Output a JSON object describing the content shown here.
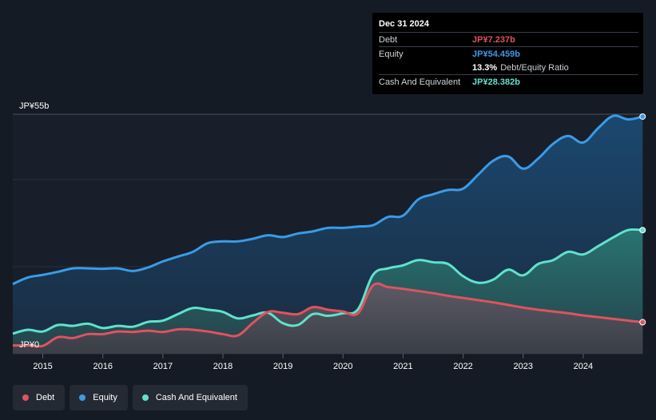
{
  "colors": {
    "debt": "#e05260",
    "equity": "#3b9be6",
    "cash": "#5fe2cc",
    "grid": "#2c323b"
  },
  "tooltip": {
    "date": "Dec 31 2024",
    "debt_label": "Debt",
    "debt_value": "JP¥7.237b",
    "equity_label": "Equity",
    "equity_value": "JP¥54.459b",
    "ratio_value": "13.3%",
    "ratio_text": "Debt/Equity Ratio",
    "cash_label": "Cash And Equivalent",
    "cash_value": "JP¥28.382b"
  },
  "legend": {
    "debt": "Debt",
    "equity": "Equity",
    "cash": "Cash And Equivalent"
  },
  "chart_data": {
    "type": "area",
    "title": "",
    "unit": "JP¥ billions",
    "y_top_label": "JP¥55b",
    "y_bottom_label": "JP¥0",
    "ylim": [
      0,
      55
    ],
    "xlim": [
      2014.5,
      2025.0
    ],
    "x_tick_labels": [
      "2015",
      "2016",
      "2017",
      "2018",
      "2019",
      "2020",
      "2021",
      "2022",
      "2023",
      "2024"
    ],
    "x_ticks": [
      2015,
      2016,
      2017,
      2018,
      2019,
      2020,
      2021,
      2022,
      2023,
      2024
    ],
    "gridlines": [
      0,
      20,
      40,
      55
    ],
    "series": [
      {
        "name": "Equity",
        "key": "equity",
        "points": [
          [
            2014.5,
            16.0
          ],
          [
            2014.75,
            17.5
          ],
          [
            2015.0,
            18.1
          ],
          [
            2015.25,
            18.8
          ],
          [
            2015.5,
            19.6
          ],
          [
            2015.75,
            19.6
          ],
          [
            2016.0,
            19.5
          ],
          [
            2016.25,
            19.6
          ],
          [
            2016.5,
            19.0
          ],
          [
            2016.75,
            19.8
          ],
          [
            2017.0,
            21.2
          ],
          [
            2017.25,
            22.3
          ],
          [
            2017.5,
            23.4
          ],
          [
            2017.75,
            25.4
          ],
          [
            2018.0,
            25.8
          ],
          [
            2018.25,
            25.8
          ],
          [
            2018.5,
            26.4
          ],
          [
            2018.75,
            27.2
          ],
          [
            2019.0,
            26.8
          ],
          [
            2019.25,
            27.6
          ],
          [
            2019.5,
            28.1
          ],
          [
            2019.75,
            28.9
          ],
          [
            2020.0,
            28.9
          ],
          [
            2020.25,
            29.2
          ],
          [
            2020.5,
            29.5
          ],
          [
            2020.75,
            31.4
          ],
          [
            2021.0,
            31.7
          ],
          [
            2021.25,
            35.4
          ],
          [
            2021.5,
            36.6
          ],
          [
            2021.75,
            37.6
          ],
          [
            2022.0,
            37.9
          ],
          [
            2022.25,
            41.1
          ],
          [
            2022.5,
            44.3
          ],
          [
            2022.75,
            45.3
          ],
          [
            2023.0,
            42.5
          ],
          [
            2023.25,
            44.8
          ],
          [
            2023.5,
            48.2
          ],
          [
            2023.75,
            50.0
          ],
          [
            2024.0,
            48.5
          ],
          [
            2024.25,
            51.8
          ],
          [
            2024.5,
            54.6
          ],
          [
            2024.75,
            53.8
          ],
          [
            2024.99,
            54.459
          ]
        ]
      },
      {
        "name": "Cash And Equivalent",
        "key": "cash",
        "points": [
          [
            2014.5,
            4.6
          ],
          [
            2014.75,
            5.5
          ],
          [
            2015.0,
            5.1
          ],
          [
            2015.25,
            6.6
          ],
          [
            2015.5,
            6.4
          ],
          [
            2015.75,
            6.9
          ],
          [
            2016.0,
            5.9
          ],
          [
            2016.25,
            6.4
          ],
          [
            2016.5,
            6.2
          ],
          [
            2016.75,
            7.3
          ],
          [
            2017.0,
            7.6
          ],
          [
            2017.25,
            9.1
          ],
          [
            2017.5,
            10.5
          ],
          [
            2017.75,
            10.1
          ],
          [
            2018.0,
            9.6
          ],
          [
            2018.25,
            8.1
          ],
          [
            2018.5,
            8.8
          ],
          [
            2018.75,
            9.4
          ],
          [
            2019.0,
            7.0
          ],
          [
            2019.25,
            6.6
          ],
          [
            2019.5,
            9.1
          ],
          [
            2019.75,
            8.7
          ],
          [
            2020.0,
            9.3
          ],
          [
            2020.25,
            10.2
          ],
          [
            2020.5,
            18.1
          ],
          [
            2020.75,
            19.6
          ],
          [
            2021.0,
            20.3
          ],
          [
            2021.25,
            21.5
          ],
          [
            2021.5,
            21.0
          ],
          [
            2021.75,
            20.6
          ],
          [
            2022.0,
            17.8
          ],
          [
            2022.25,
            16.3
          ],
          [
            2022.5,
            17.0
          ],
          [
            2022.75,
            19.3
          ],
          [
            2023.0,
            18.0
          ],
          [
            2023.25,
            20.6
          ],
          [
            2023.5,
            21.5
          ],
          [
            2023.75,
            23.4
          ],
          [
            2024.0,
            22.8
          ],
          [
            2024.25,
            24.7
          ],
          [
            2024.5,
            26.7
          ],
          [
            2024.75,
            28.4
          ],
          [
            2024.99,
            28.382
          ]
        ]
      },
      {
        "name": "Debt",
        "key": "debt",
        "points": [
          [
            2014.5,
            1.9
          ],
          [
            2014.75,
            1.9
          ],
          [
            2015.0,
            1.8
          ],
          [
            2015.25,
            3.8
          ],
          [
            2015.5,
            3.6
          ],
          [
            2015.75,
            4.5
          ],
          [
            2016.0,
            4.5
          ],
          [
            2016.25,
            5.1
          ],
          [
            2016.5,
            5.0
          ],
          [
            2016.75,
            5.3
          ],
          [
            2017.0,
            5.0
          ],
          [
            2017.25,
            5.6
          ],
          [
            2017.5,
            5.5
          ],
          [
            2017.75,
            5.1
          ],
          [
            2018.0,
            4.5
          ],
          [
            2018.25,
            4.2
          ],
          [
            2018.5,
            7.1
          ],
          [
            2018.75,
            9.6
          ],
          [
            2019.0,
            9.4
          ],
          [
            2019.25,
            9.1
          ],
          [
            2019.5,
            10.7
          ],
          [
            2019.75,
            10.1
          ],
          [
            2020.0,
            9.7
          ],
          [
            2020.25,
            9.3
          ],
          [
            2020.5,
            15.7
          ],
          [
            2020.75,
            15.3
          ],
          [
            2021.0,
            14.9
          ],
          [
            2021.25,
            14.4
          ],
          [
            2021.5,
            13.9
          ],
          [
            2021.75,
            13.3
          ],
          [
            2022.0,
            12.8
          ],
          [
            2022.25,
            12.3
          ],
          [
            2022.5,
            11.8
          ],
          [
            2022.75,
            11.2
          ],
          [
            2023.0,
            10.6
          ],
          [
            2023.25,
            10.1
          ],
          [
            2023.5,
            9.7
          ],
          [
            2023.75,
            9.3
          ],
          [
            2024.0,
            8.8
          ],
          [
            2024.25,
            8.4
          ],
          [
            2024.5,
            8.0
          ],
          [
            2024.75,
            7.6
          ],
          [
            2024.99,
            7.237
          ]
        ]
      }
    ]
  }
}
